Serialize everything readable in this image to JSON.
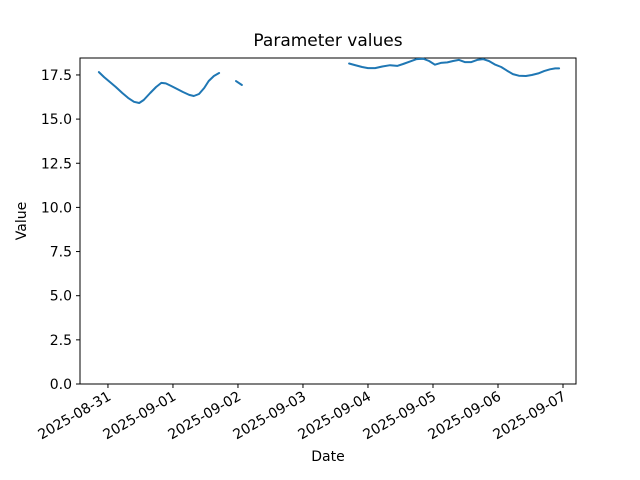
{
  "chart_data": {
    "type": "line",
    "title": "Parameter values",
    "xlabel": "Date",
    "ylabel": "Value",
    "x_tick_labels": [
      "2025-08-31",
      "2025-09-01",
      "2025-09-02",
      "2025-09-03",
      "2025-09-04",
      "2025-09-05",
      "2025-09-06",
      "2025-09-07"
    ],
    "x_tick_days": [
      0,
      1,
      2,
      3,
      4,
      5,
      6,
      7
    ],
    "xlim_days": [
      -0.43,
      7.2
    ],
    "y_tick_labels": [
      "0.0",
      "2.5",
      "5.0",
      "7.5",
      "10.0",
      "12.5",
      "15.0",
      "17.5"
    ],
    "y_ticks": [
      0.0,
      2.5,
      5.0,
      7.5,
      10.0,
      12.5,
      15.0,
      17.5
    ],
    "ylim": [
      0,
      18.46
    ],
    "grid": false,
    "legend": "none",
    "line_color": "#1f77b4",
    "background_color": "#ffffff",
    "axis_color": "#000000",
    "series": [
      {
        "name": "parameter-values",
        "x_unit": "days from 2025-08-31",
        "segments": [
          [
            [
              -0.14,
              17.66
            ],
            [
              -0.06,
              17.38
            ],
            [
              0.03,
              17.1
            ],
            [
              0.12,
              16.82
            ],
            [
              0.22,
              16.48
            ],
            [
              0.31,
              16.2
            ],
            [
              0.4,
              15.98
            ],
            [
              0.48,
              15.91
            ],
            [
              0.55,
              16.08
            ],
            [
              0.65,
              16.48
            ],
            [
              0.74,
              16.82
            ],
            [
              0.82,
              17.05
            ],
            [
              0.89,
              17.02
            ],
            [
              0.97,
              16.88
            ],
            [
              1.06,
              16.71
            ],
            [
              1.15,
              16.54
            ],
            [
              1.25,
              16.37
            ],
            [
              1.32,
              16.31
            ],
            [
              1.4,
              16.42
            ],
            [
              1.48,
              16.76
            ],
            [
              1.55,
              17.16
            ],
            [
              1.63,
              17.44
            ],
            [
              1.71,
              17.61
            ]
          ],
          [
            [
              1.97,
              17.15
            ],
            [
              2.06,
              16.93
            ]
          ],
          [
            [
              3.71,
              18.15
            ],
            [
              3.8,
              18.06
            ],
            [
              3.91,
              17.95
            ],
            [
              4.0,
              17.89
            ],
            [
              4.11,
              17.89
            ],
            [
              4.22,
              17.98
            ],
            [
              4.34,
              18.05
            ],
            [
              4.45,
              18.01
            ],
            [
              4.54,
              18.12
            ],
            [
              4.65,
              18.27
            ],
            [
              4.75,
              18.4
            ],
            [
              4.85,
              18.42
            ],
            [
              4.94,
              18.29
            ],
            [
              5.03,
              18.08
            ],
            [
              5.12,
              18.18
            ],
            [
              5.22,
              18.21
            ],
            [
              5.31,
              18.29
            ],
            [
              5.4,
              18.35
            ],
            [
              5.49,
              18.23
            ],
            [
              5.59,
              18.23
            ],
            [
              5.68,
              18.35
            ],
            [
              5.77,
              18.4
            ],
            [
              5.86,
              18.29
            ],
            [
              5.95,
              18.1
            ],
            [
              6.05,
              17.95
            ],
            [
              6.14,
              17.74
            ],
            [
              6.23,
              17.55
            ],
            [
              6.32,
              17.46
            ],
            [
              6.43,
              17.44
            ],
            [
              6.52,
              17.5
            ],
            [
              6.62,
              17.59
            ],
            [
              6.71,
              17.72
            ],
            [
              6.8,
              17.82
            ],
            [
              6.88,
              17.87
            ],
            [
              6.94,
              17.87
            ]
          ]
        ]
      }
    ]
  }
}
